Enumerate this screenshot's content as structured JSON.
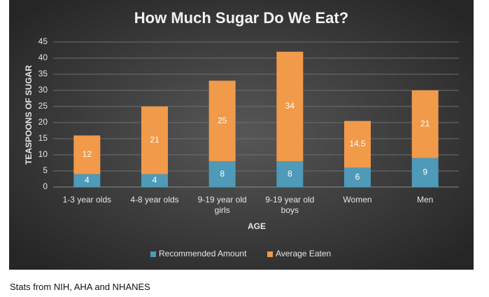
{
  "chart_data": {
    "type": "stacked_bar",
    "title": "How Much Sugar Do We Eat?",
    "x_label": "AGE",
    "y_label": "TEASPOONS OF SUGAR",
    "categories": [
      "1-3 year olds",
      "4-8 year olds",
      "9-19 year old girls",
      "9-19 year old boys",
      "Women",
      "Men"
    ],
    "series": [
      {
        "name": "Recommended Amount",
        "color": "#4e9ab8",
        "values": [
          4,
          4,
          8,
          8,
          6,
          9
        ]
      },
      {
        "name": "Average Eaten",
        "color": "#f09a4a",
        "values": [
          12,
          21,
          25,
          34,
          14.5,
          21
        ]
      }
    ],
    "ylim": [
      0,
      45
    ],
    "yticks": [
      0,
      5,
      10,
      15,
      20,
      25,
      30,
      35,
      40,
      45
    ],
    "grid": true,
    "legend": "bottom"
  },
  "caption": "Stats from NIH, AHA and NHANES"
}
